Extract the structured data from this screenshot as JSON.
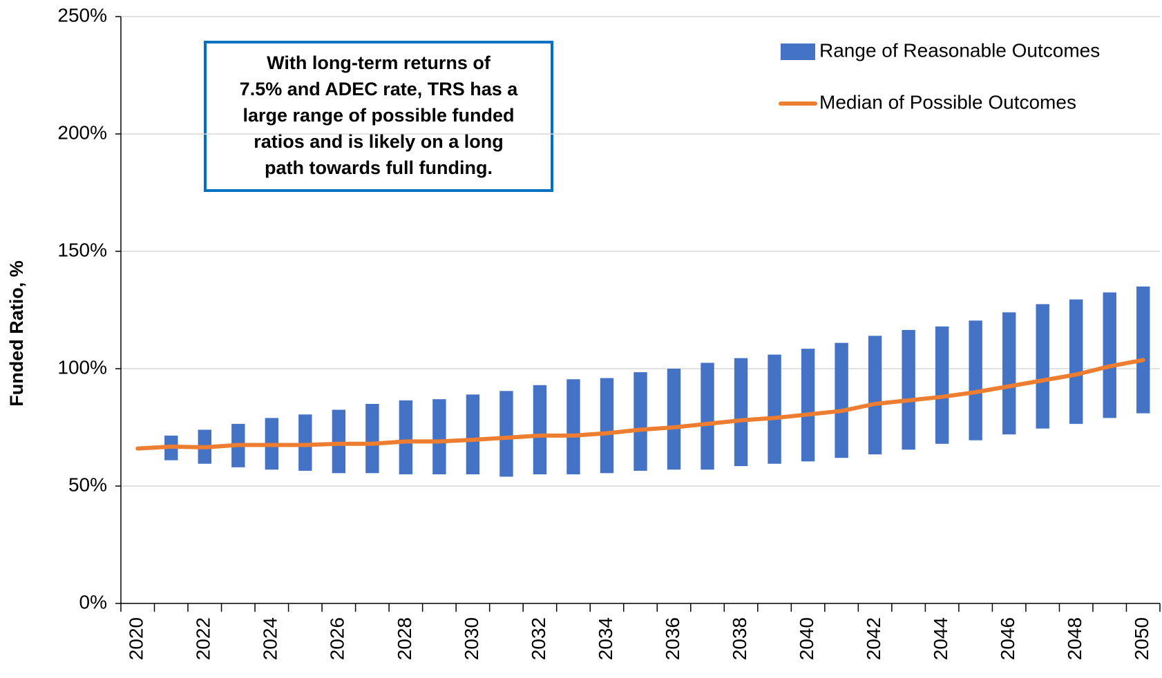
{
  "chart_data": {
    "type": "range-line",
    "y_label": "Funded Ratio, %",
    "annotation": [
      "With long-term returns of",
      "7.5% and ADEC rate, TRS has a",
      "large range of possible funded",
      "ratios and is likely on a long",
      "path towards full funding."
    ],
    "categories": [
      "2020",
      null,
      "2022",
      null,
      "2024",
      null,
      "2026",
      null,
      "2028",
      null,
      "2030",
      null,
      "2032",
      null,
      "2034",
      null,
      "2036",
      null,
      "2038",
      null,
      "2040",
      null,
      "2042",
      null,
      "2044",
      null,
      "2046",
      null,
      "2048",
      null,
      "2050"
    ],
    "ylim": [
      0,
      250
    ],
    "yticks": [
      {
        "value": 0,
        "label": "0%"
      },
      {
        "value": 50,
        "label": "50%"
      },
      {
        "value": 100,
        "label": "100%"
      },
      {
        "value": 150,
        "label": "150%"
      },
      {
        "value": 200,
        "label": "200%"
      },
      {
        "value": 250,
        "label": "250%"
      }
    ],
    "grid": true,
    "legend": "top-right",
    "series": [
      {
        "name": "Range of Reasonable Outcomes",
        "color": "#4472c4",
        "low": [
          null,
          61,
          59.5,
          58,
          57,
          56.5,
          55.5,
          55.5,
          55,
          55,
          55,
          54,
          55,
          55,
          55.5,
          56.5,
          57,
          57,
          58.5,
          59.5,
          60.5,
          62,
          63.5,
          65.5,
          68,
          69.5,
          72,
          74.5,
          76.5,
          79,
          81
        ],
        "high": [
          null,
          71.5,
          74,
          76.5,
          79,
          80.5,
          82.5,
          85,
          86.5,
          87,
          89,
          90.5,
          93,
          95.5,
          96,
          98.5,
          100,
          102.5,
          104.5,
          106,
          108.5,
          111,
          114,
          116.5,
          118,
          120.5,
          124,
          127.5,
          129.5,
          132.5,
          135
        ]
      },
      {
        "name": "Median of Possible Outcomes",
        "color": "#ed7d31",
        "values": [
          66,
          66.8,
          66.5,
          67.5,
          67.5,
          67.5,
          68,
          68,
          69,
          69,
          69.7,
          70.6,
          71.5,
          71.5,
          72.5,
          74,
          75,
          76.5,
          78,
          79,
          80.5,
          82,
          85,
          86.5,
          88,
          90,
          92.5,
          95,
          97.5,
          101,
          103.7
        ]
      }
    ]
  }
}
